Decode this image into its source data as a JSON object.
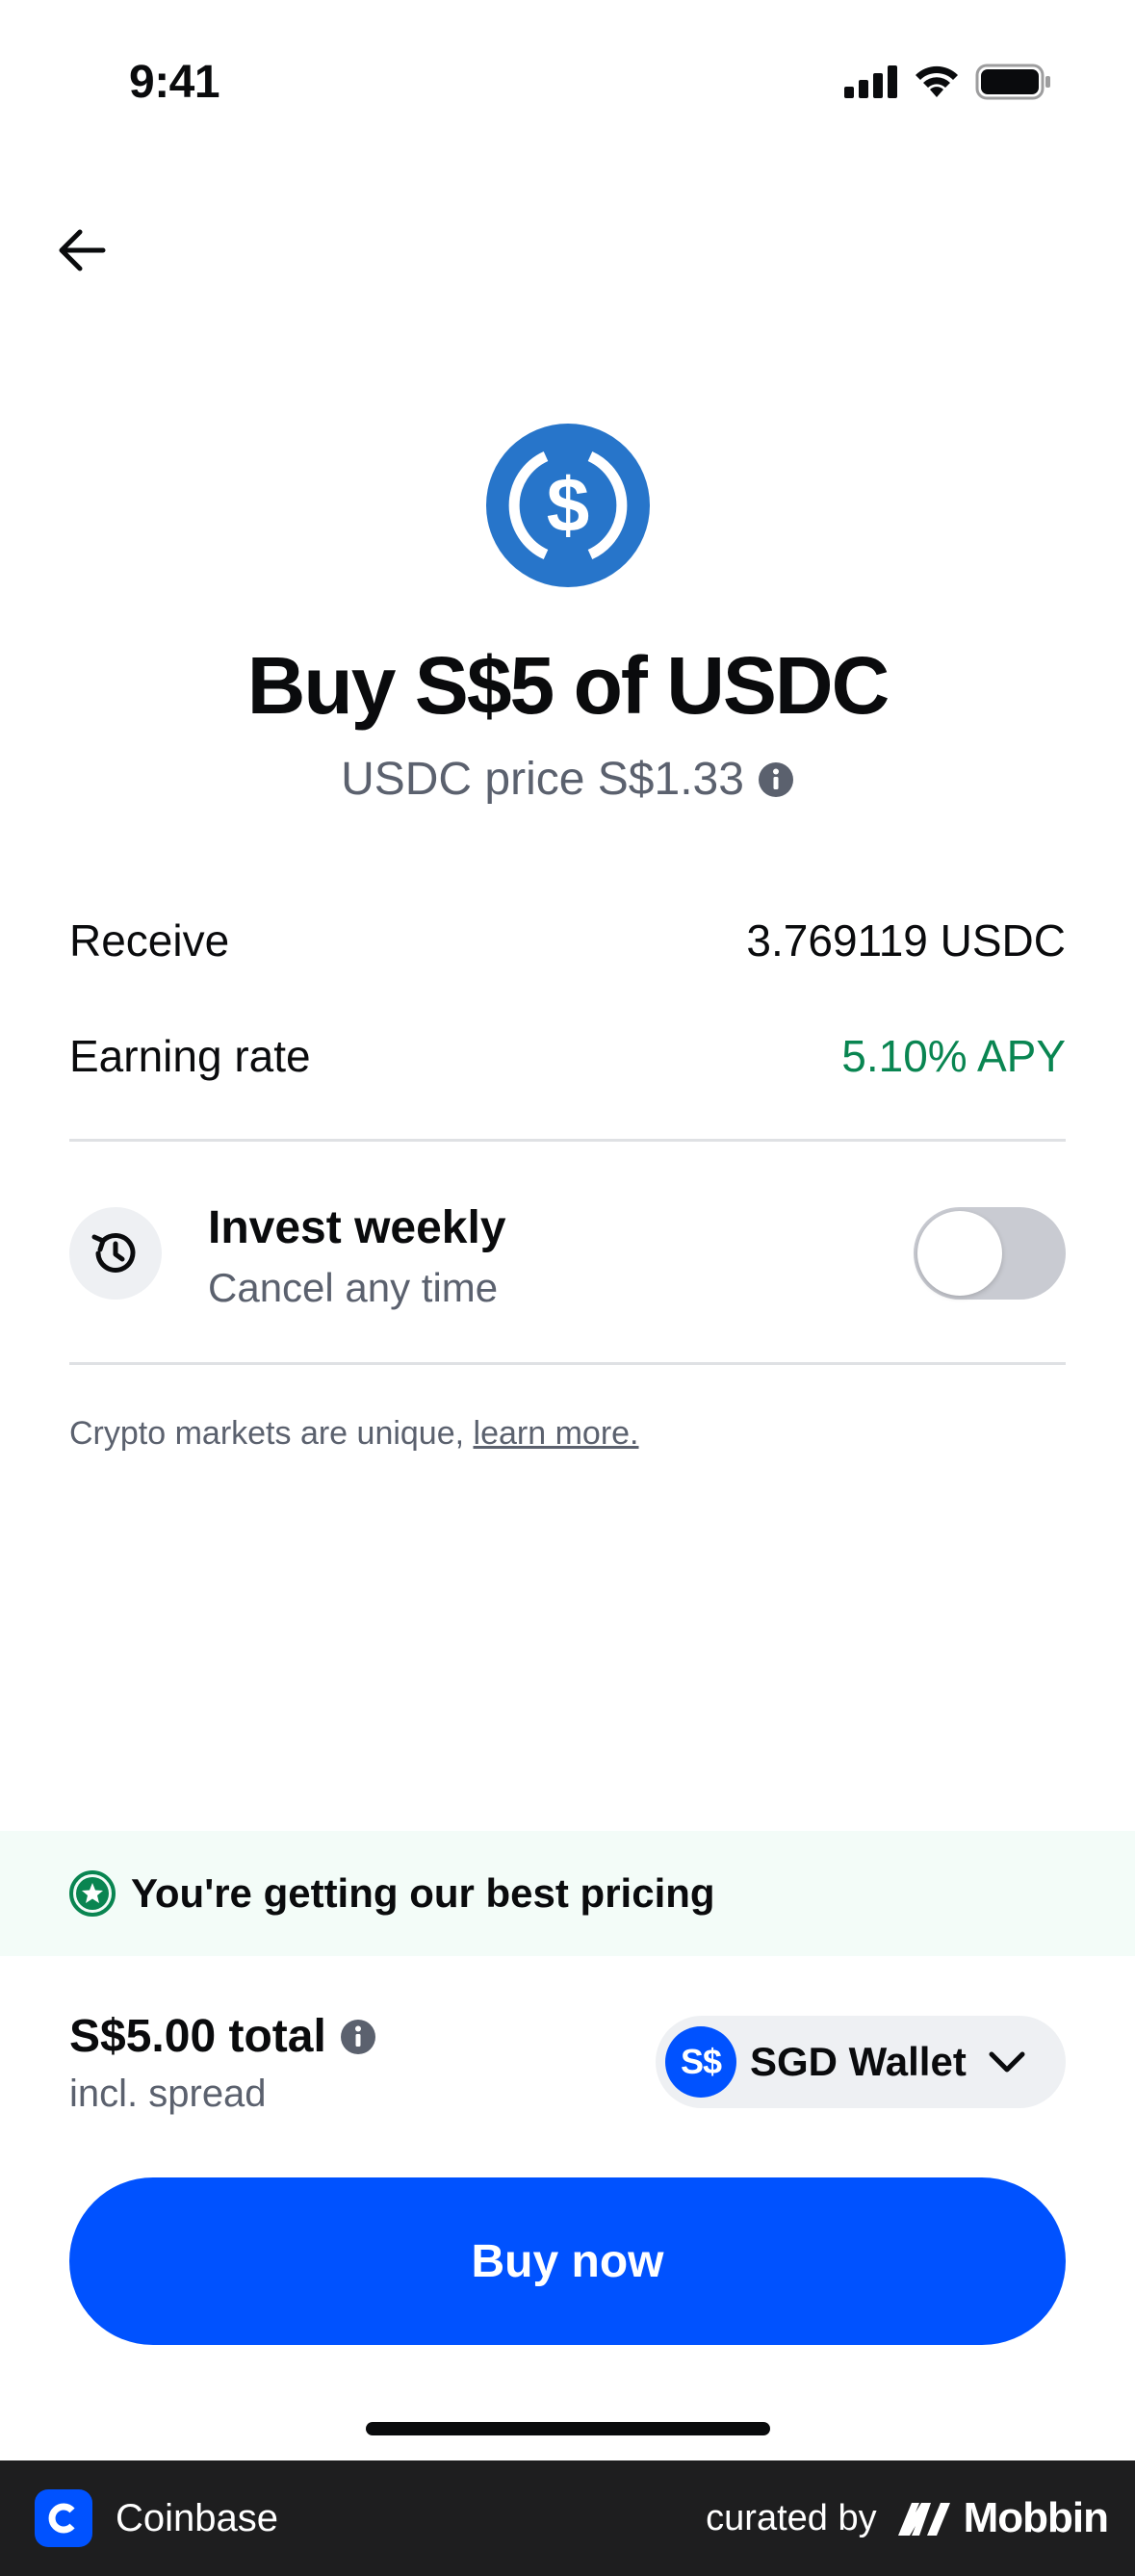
{
  "status_bar": {
    "time": "9:41"
  },
  "header": {
    "back_icon": "arrow-left-icon"
  },
  "asset": {
    "icon": "usdc-logo-icon",
    "color": "#2775ca"
  },
  "title": "Buy S$5 of USDC",
  "price_line": {
    "text": "USDC price S$1.33",
    "info_icon": "info-icon"
  },
  "details": {
    "receive_label": "Receive",
    "receive_value": "3.769119 USDC",
    "rate_label": "Earning rate",
    "rate_value": "5.10% APY",
    "rate_color": "#098551"
  },
  "invest": {
    "icon": "recurring-history-icon",
    "title": "Invest weekly",
    "subtitle": "Cancel any time",
    "enabled": false
  },
  "disclaimer": {
    "text": "Crypto markets are unique, ",
    "link": "learn more."
  },
  "pricing_banner": {
    "icon": "star-badge-icon",
    "text": "You're getting our best pricing"
  },
  "total": {
    "label": "S$5.00 total",
    "sub": "incl. spread"
  },
  "wallet": {
    "badge": "S$",
    "label": "SGD Wallet",
    "chevron": "chevron-down-icon"
  },
  "cta": {
    "label": "Buy now",
    "color": "#0052ff"
  },
  "footer": {
    "app_name": "Coinbase",
    "curated_by": "curated by",
    "brand": "Mobbin"
  }
}
